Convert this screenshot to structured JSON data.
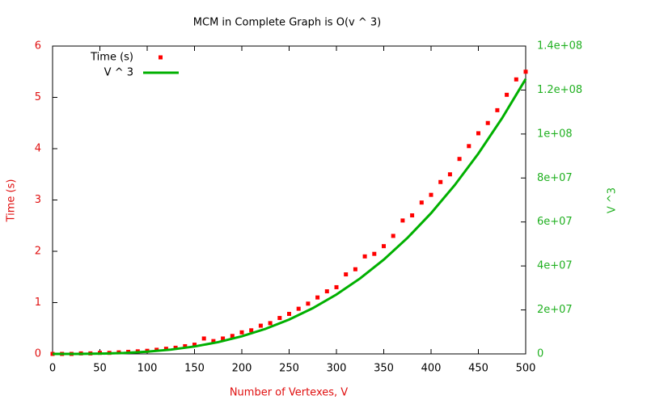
{
  "chart_data": {
    "type": "scatter",
    "title": "MCM in Complete Graph is O(v ^ 3)",
    "x_label": "Number of Vertexes, V",
    "y_label": "Time (s)",
    "y2_label": "V ^3",
    "xlim": [
      0,
      500
    ],
    "xticks": [
      0,
      50,
      100,
      150,
      200,
      250,
      300,
      350,
      400,
      450,
      500
    ],
    "ylim": [
      0,
      6
    ],
    "yticks": [
      0,
      1,
      2,
      3,
      4,
      5,
      6
    ],
    "y2lim": [
      0,
      140000000
    ],
    "y2ticks": [
      0,
      {
        "value": 20000000,
        "label": "2e+07"
      },
      {
        "value": 40000000,
        "label": "4e+07"
      },
      {
        "value": 60000000,
        "label": "6e+07"
      },
      {
        "value": 80000000,
        "label": "8e+07"
      },
      {
        "value": 100000000,
        "label": "1e+08"
      },
      {
        "value": 120000000,
        "label": "1.2e+08"
      },
      {
        "value": 140000000,
        "label": "1.4e+08"
      }
    ],
    "legend": "top-left",
    "series": [
      {
        "name": "Time (s)",
        "type": "scatter",
        "color": "#ff0000",
        "x": [
          0,
          10,
          20,
          30,
          40,
          50,
          60,
          70,
          80,
          90,
          100,
          110,
          120,
          130,
          140,
          150,
          160,
          170,
          180,
          190,
          200,
          210,
          220,
          230,
          240,
          250,
          260,
          270,
          280,
          290,
          300,
          310,
          320,
          330,
          340,
          350,
          360,
          370,
          380,
          390,
          400,
          410,
          420,
          430,
          440,
          450,
          460,
          470,
          480,
          490,
          500
        ],
        "values": [
          0,
          0,
          0,
          0.01,
          0.01,
          0.02,
          0.02,
          0.03,
          0.04,
          0.05,
          0.06,
          0.08,
          0.1,
          0.12,
          0.15,
          0.18,
          0.3,
          0.25,
          0.3,
          0.35,
          0.42,
          0.46,
          0.55,
          0.6,
          0.7,
          0.78,
          0.88,
          0.98,
          1.1,
          1.22,
          1.3,
          1.55,
          1.65,
          1.9,
          1.95,
          2.1,
          2.3,
          2.6,
          2.7,
          2.95,
          3.1,
          3.35,
          3.5,
          3.8,
          4.05,
          4.3,
          4.5,
          4.75,
          5.05,
          5.35,
          5.5
        ]
      },
      {
        "name": "V ^ 3",
        "type": "line",
        "axis": "y2",
        "color": "#00b000",
        "x": [
          0,
          25,
          50,
          75,
          100,
          125,
          150,
          175,
          200,
          225,
          250,
          275,
          300,
          325,
          350,
          375,
          400,
          425,
          450,
          475,
          500
        ],
        "values": [
          0,
          15625,
          125000,
          421875,
          1000000,
          1953125,
          3375000,
          5359375,
          8000000,
          11390625,
          15625000,
          20796875,
          27000000,
          34328125,
          42875000,
          52734375,
          64000000,
          76765625,
          91125000,
          107171875,
          125000000
        ]
      }
    ]
  }
}
